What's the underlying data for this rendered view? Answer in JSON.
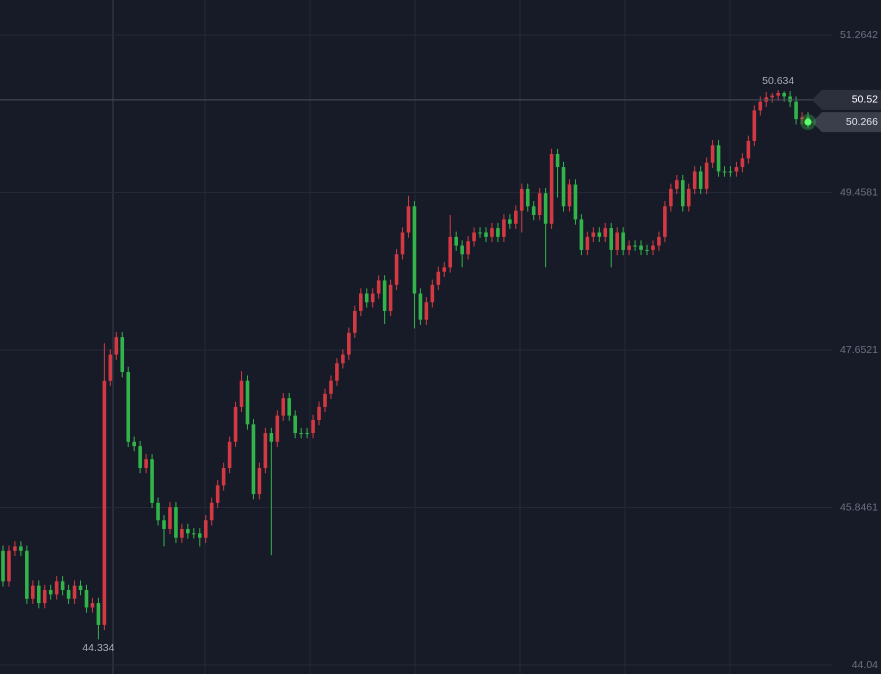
{
  "chart_data": {
    "type": "candlestick",
    "up_color": "#d23a43",
    "down_color": "#33b44a",
    "ylim": [
      43.937,
      51.666
    ],
    "yticks": [
      51.2642,
      49.4581,
      47.6521,
      45.8461,
      44.04
    ],
    "grid": true,
    "crosshair_price": 50.52,
    "open": [
      45.35,
      45.0,
      45.35,
      45.4,
      45.35,
      44.8,
      44.95,
      44.75,
      44.9,
      44.85,
      45.0,
      44.9,
      44.8,
      44.95,
      44.9,
      44.7,
      44.75,
      44.5,
      47.3,
      47.6,
      47.8,
      47.4,
      46.6,
      46.55,
      46.3,
      46.4,
      45.9,
      45.7,
      45.6,
      45.85,
      45.5,
      45.6,
      45.55,
      45.55,
      45.5,
      45.7,
      45.9,
      46.1,
      46.3,
      46.6,
      47.0,
      47.3,
      46.8,
      46.0,
      46.3,
      46.7,
      46.6,
      46.9,
      47.1,
      46.9,
      46.7,
      46.7,
      46.7,
      46.85,
      47.0,
      47.15,
      47.3,
      47.5,
      47.6,
      47.85,
      48.1,
      48.3,
      48.2,
      48.3,
      48.45,
      48.1,
      48.4,
      48.75,
      49.0,
      49.3,
      48.3,
      48.0,
      48.2,
      48.4,
      48.55,
      48.6,
      48.95,
      48.85,
      48.75,
      48.9,
      49.0,
      49.0,
      48.95,
      49.05,
      48.95,
      49.15,
      49.1,
      49.25,
      49.5,
      49.3,
      49.2,
      49.45,
      49.1,
      49.9,
      49.75,
      49.3,
      49.55,
      49.15,
      48.8,
      48.95,
      49.0,
      48.95,
      49.05,
      48.8,
      49.0,
      48.8,
      48.85,
      48.85,
      48.8,
      48.8,
      48.85,
      48.95,
      49.3,
      49.5,
      49.6,
      49.3,
      49.5,
      49.7,
      49.5,
      49.8,
      50.0,
      49.7,
      49.7,
      49.7,
      49.75,
      49.85,
      50.05,
      50.4,
      50.5,
      50.55,
      50.57,
      50.6,
      50.56,
      50.5,
      50.3,
      50.32
    ],
    "high": [
      45.41,
      45.41,
      45.46,
      45.46,
      45.41,
      45.01,
      45.01,
      44.96,
      44.96,
      45.06,
      45.06,
      44.96,
      45.01,
      45.01,
      44.96,
      44.81,
      44.81,
      47.73,
      47.66,
      47.86,
      47.86,
      47.46,
      46.66,
      46.61,
      46.46,
      46.46,
      45.96,
      45.76,
      45.91,
      45.91,
      45.66,
      45.66,
      45.61,
      45.61,
      45.76,
      45.96,
      46.16,
      46.36,
      46.66,
      47.06,
      47.41,
      47.36,
      46.86,
      46.36,
      46.76,
      46.76,
      46.96,
      47.16,
      47.16,
      46.96,
      46.76,
      46.76,
      46.91,
      47.06,
      47.21,
      47.36,
      47.56,
      47.66,
      47.91,
      48.16,
      48.36,
      48.36,
      48.36,
      48.51,
      48.51,
      48.46,
      48.81,
      49.06,
      49.42,
      49.36,
      48.36,
      48.26,
      48.46,
      48.61,
      48.66,
      49.2,
      49.01,
      48.91,
      48.96,
      49.06,
      49.06,
      49.06,
      49.11,
      49.11,
      49.21,
      49.21,
      49.31,
      49.56,
      49.56,
      49.36,
      49.51,
      49.51,
      49.96,
      49.96,
      49.81,
      49.61,
      49.61,
      49.21,
      49.01,
      49.06,
      49.06,
      49.11,
      49.11,
      49.06,
      49.06,
      48.91,
      48.91,
      48.91,
      48.86,
      48.91,
      49.01,
      49.36,
      49.56,
      49.66,
      49.66,
      49.56,
      49.76,
      49.76,
      49.86,
      50.06,
      50.06,
      49.76,
      49.76,
      49.81,
      49.91,
      50.11,
      50.46,
      50.56,
      50.61,
      50.6,
      50.634,
      50.62,
      50.62,
      50.56,
      50.38,
      50.38
    ],
    "low": [
      44.94,
      44.94,
      45.29,
      45.29,
      44.74,
      44.74,
      44.69,
      44.69,
      44.79,
      44.79,
      44.84,
      44.74,
      44.74,
      44.84,
      44.64,
      44.64,
      44.334,
      44.44,
      47.24,
      47.54,
      47.34,
      46.54,
      46.49,
      46.24,
      46.24,
      45.84,
      45.64,
      45.4,
      45.54,
      45.44,
      45.44,
      45.49,
      45.49,
      45.4,
      45.44,
      45.64,
      45.84,
      46.04,
      46.24,
      46.54,
      46.94,
      46.74,
      45.94,
      45.94,
      46.24,
      45.3,
      46.54,
      46.84,
      46.84,
      46.64,
      46.64,
      46.64,
      46.64,
      46.79,
      46.94,
      47.09,
      47.24,
      47.44,
      47.54,
      47.79,
      48.04,
      48.14,
      48.14,
      48.24,
      47.95,
      48.04,
      48.34,
      48.69,
      48.94,
      47.9,
      47.94,
      47.94,
      48.14,
      48.34,
      48.49,
      48.54,
      48.79,
      48.6,
      48.69,
      48.84,
      48.94,
      48.89,
      48.89,
      48.89,
      48.89,
      49.04,
      49.04,
      49.0,
      49.24,
      49.14,
      49.14,
      48.6,
      49.04,
      49.4,
      49.24,
      49.24,
      49.09,
      48.74,
      48.74,
      48.89,
      48.89,
      48.89,
      48.6,
      48.74,
      48.74,
      48.74,
      48.79,
      48.74,
      48.74,
      48.74,
      48.79,
      48.89,
      49.24,
      49.44,
      49.24,
      49.24,
      49.44,
      49.44,
      49.44,
      49.74,
      49.64,
      49.64,
      49.64,
      49.64,
      49.69,
      49.79,
      49.99,
      50.34,
      50.44,
      50.49,
      50.51,
      50.5,
      50.44,
      50.24,
      50.24,
      50.2
    ],
    "close": [
      45.0,
      45.35,
      45.4,
      45.35,
      44.8,
      44.95,
      44.75,
      44.9,
      44.85,
      45.0,
      44.9,
      44.8,
      44.95,
      44.9,
      44.7,
      44.75,
      44.5,
      47.3,
      47.6,
      47.8,
      47.4,
      46.6,
      46.55,
      46.3,
      46.4,
      45.9,
      45.7,
      45.6,
      45.85,
      45.5,
      45.6,
      45.55,
      45.55,
      45.5,
      45.7,
      45.9,
      46.1,
      46.3,
      46.6,
      47.0,
      47.3,
      46.8,
      46.0,
      46.3,
      46.7,
      46.6,
      46.9,
      47.1,
      46.9,
      46.7,
      46.7,
      46.7,
      46.85,
      47.0,
      47.15,
      47.3,
      47.5,
      47.6,
      47.85,
      48.1,
      48.3,
      48.2,
      48.3,
      48.45,
      48.1,
      48.4,
      48.75,
      49.0,
      49.3,
      48.3,
      48.0,
      48.2,
      48.4,
      48.55,
      48.6,
      48.95,
      48.85,
      48.75,
      48.9,
      49.0,
      49.0,
      48.95,
      49.05,
      48.95,
      49.15,
      49.1,
      49.25,
      49.5,
      49.3,
      49.2,
      49.45,
      49.1,
      49.9,
      49.75,
      49.3,
      49.55,
      49.15,
      48.8,
      48.95,
      49.0,
      48.95,
      49.05,
      48.8,
      49.0,
      48.8,
      48.85,
      48.85,
      48.8,
      48.8,
      48.85,
      48.95,
      49.3,
      49.5,
      49.6,
      49.3,
      49.5,
      49.7,
      49.5,
      49.8,
      50.0,
      49.7,
      49.7,
      49.7,
      49.75,
      49.85,
      50.05,
      50.4,
      50.5,
      50.55,
      50.57,
      50.6,
      50.56,
      50.5,
      50.3,
      50.32,
      50.266
    ]
  }
}
